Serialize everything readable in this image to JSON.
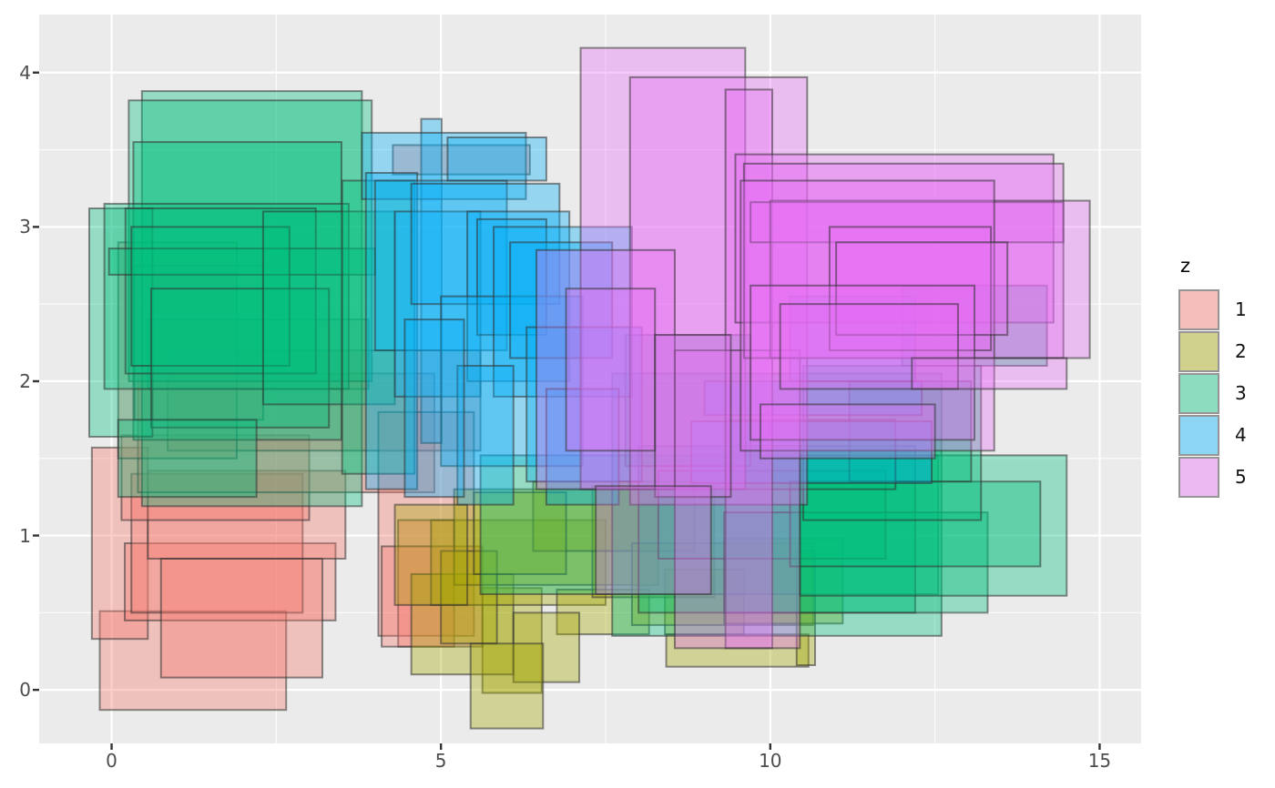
{
  "chart_data": {
    "type": "rect",
    "title": "",
    "xlabel": "",
    "ylabel": "",
    "x_tick_labels": [
      "0",
      "5",
      "10",
      "15"
    ],
    "x_tick_values": [
      0,
      5,
      10,
      15
    ],
    "x_minor_values": [
      2.5,
      7.5,
      12.5
    ],
    "y_tick_labels": [
      "0",
      "1",
      "2",
      "3",
      "4"
    ],
    "y_tick_values": [
      0,
      1,
      2,
      3,
      4
    ],
    "y_minor_values": [
      0.5,
      1.5,
      2.5,
      3.5
    ],
    "xlim": [
      -1.1,
      15.63
    ],
    "ylim": [
      -0.347,
      4.376
    ],
    "grid": true,
    "panel_bg": "#EBEBEB",
    "grid_color": "#FFFFFF",
    "axis_text_color": "#4d4d4d",
    "tick_mark_color": "#333333",
    "fill_alpha": 0.36,
    "rect_stroke": "rgba(50,50,50,0.55)",
    "rect_stroke_width": 2,
    "legend": {
      "title": "z",
      "position": "right",
      "entries": [
        {
          "label": "1",
          "color": "#F8766D"
        },
        {
          "label": "2",
          "color": "#A3A500"
        },
        {
          "label": "3",
          "color": "#00BF7D"
        },
        {
          "label": "4",
          "color": "#00B0F6"
        },
        {
          "label": "5",
          "color": "#E76BF3"
        }
      ]
    },
    "rect_format": [
      "z",
      "xmin",
      "xmax",
      "ymin",
      "ymax"
    ],
    "rects": [
      [
        1,
        -0.18,
        2.65,
        -0.13,
        0.51
      ],
      [
        1,
        -0.3,
        0.55,
        0.33,
        1.57
      ],
      [
        1,
        0.2,
        3.4,
        0.45,
        0.95
      ],
      [
        1,
        0.3,
        2.9,
        0.5,
        1.4
      ],
      [
        1,
        0.55,
        3.55,
        0.85,
        1.42
      ],
      [
        1,
        0.15,
        3.0,
        1.1,
        1.65
      ],
      [
        1,
        0.4,
        4.9,
        1.28,
        2.05
      ],
      [
        1,
        0.85,
        5.6,
        1.55,
        2.2
      ],
      [
        1,
        0.1,
        1.9,
        1.5,
        2.9
      ],
      [
        1,
        0.35,
        2.3,
        1.75,
        2.75
      ],
      [
        1,
        0.55,
        3.9,
        1.95,
        2.4
      ],
      [
        1,
        4.05,
        5.5,
        0.35,
        1.8
      ],
      [
        1,
        4.35,
        5.2,
        0.28,
        1.1
      ],
      [
        1,
        4.27,
        6.35,
        3.34,
        3.53
      ],
      [
        1,
        4.1,
        5.63,
        0.28,
        0.93
      ],
      [
        1,
        0.75,
        3.2,
        0.08,
        0.85
      ],
      [
        2,
        5.63,
        6.53,
        -0.02,
        0.66
      ],
      [
        2,
        4.55,
        6.1,
        0.1,
        0.75
      ],
      [
        2,
        4.85,
        7.5,
        0.55,
        1.1
      ],
      [
        2,
        5.2,
        8.3,
        0.68,
        1.3
      ],
      [
        2,
        6.76,
        8.16,
        0.36,
        0.65
      ],
      [
        2,
        8.42,
        10.58,
        0.15,
        0.36
      ],
      [
        2,
        8.4,
        9.6,
        0.36,
        0.78
      ],
      [
        2,
        7.3,
        9.15,
        0.6,
        1.32
      ],
      [
        2,
        6.1,
        7.1,
        0.05,
        0.5
      ],
      [
        2,
        5.0,
        5.85,
        0.3,
        0.9
      ],
      [
        2,
        6.4,
        8.85,
        0.9,
        1.35
      ],
      [
        2,
        7.9,
        10.65,
        0.42,
        0.95
      ],
      [
        2,
        9.3,
        11.1,
        0.43,
        0.98
      ],
      [
        2,
        10.4,
        10.68,
        0.16,
        0.9
      ],
      [
        2,
        4.3,
        5.4,
        0.55,
        1.2
      ],
      [
        2,
        5.45,
        6.55,
        -0.25,
        0.3
      ],
      [
        2,
        5.5,
        6.9,
        0.75,
        1.28
      ],
      [
        3,
        0.46,
        3.8,
        1.19,
        3.88
      ],
      [
        3,
        0.26,
        3.95,
        2.0,
        3.82
      ],
      [
        3,
        0.33,
        3.49,
        1.62,
        3.55
      ],
      [
        3,
        -0.34,
        0.62,
        1.64,
        3.12
      ],
      [
        3,
        -0.11,
        3.6,
        1.95,
        3.15
      ],
      [
        3,
        0.21,
        3.1,
        2.05,
        3.12
      ],
      [
        3,
        -0.04,
        4.0,
        2.69,
        2.86
      ],
      [
        3,
        0.3,
        2.7,
        2.1,
        3.0
      ],
      [
        3,
        0.6,
        3.3,
        1.7,
        2.6
      ],
      [
        3,
        2.3,
        4.3,
        1.85,
        3.1
      ],
      [
        3,
        3.5,
        4.6,
        1.4,
        3.3
      ],
      [
        3,
        0.1,
        2.2,
        1.25,
        1.75
      ],
      [
        3,
        5.6,
        12.55,
        0.62,
        1.52
      ],
      [
        3,
        7.6,
        12.6,
        0.35,
        2.05
      ],
      [
        3,
        8.0,
        12.2,
        0.5,
        1.58
      ],
      [
        3,
        8.3,
        11.75,
        0.85,
        1.42
      ],
      [
        3,
        9.3,
        13.3,
        0.5,
        1.15
      ],
      [
        3,
        10.45,
        14.5,
        0.61,
        1.52
      ],
      [
        3,
        10.3,
        14.1,
        0.8,
        1.35
      ],
      [
        3,
        10.5,
        13.2,
        1.1,
        2.1
      ],
      [
        3,
        11.2,
        13.05,
        1.35,
        2.0
      ],
      [
        3,
        12.0,
        14.2,
        2.1,
        2.62
      ],
      [
        3,
        9.35,
        11.9,
        1.3,
        1.75
      ],
      [
        3,
        7.8,
        9.7,
        1.45,
        2.3
      ],
      [
        4,
        4.7,
        5.01,
        1.6,
        3.7
      ],
      [
        4,
        3.8,
        6.29,
        3.18,
        3.61
      ],
      [
        4,
        3.86,
        4.64,
        1.3,
        3.35
      ],
      [
        4,
        4.0,
        6.0,
        2.2,
        3.3
      ],
      [
        4,
        4.3,
        5.6,
        1.9,
        3.1
      ],
      [
        4,
        4.55,
        6.8,
        2.5,
        3.28
      ],
      [
        4,
        5.4,
        6.95,
        2.0,
        3.1
      ],
      [
        4,
        5.55,
        6.6,
        2.3,
        3.05
      ],
      [
        4,
        5.0,
        7.15,
        1.45,
        2.55
      ],
      [
        4,
        5.8,
        7.9,
        1.9,
        3.0
      ],
      [
        4,
        6.05,
        7.6,
        2.15,
        2.9
      ],
      [
        4,
        5.25,
        6.1,
        1.2,
        2.1
      ],
      [
        4,
        6.3,
        8.05,
        1.35,
        2.35
      ],
      [
        4,
        4.45,
        5.35,
        1.25,
        2.4
      ],
      [
        4,
        6.6,
        7.7,
        1.2,
        1.95
      ],
      [
        4,
        8.8,
        12.45,
        1.34,
        1.74
      ],
      [
        4,
        9.0,
        12.3,
        1.78,
        2.0
      ],
      [
        4,
        5.1,
        6.6,
        3.3,
        3.58
      ],
      [
        4,
        10.3,
        12.2,
        2.0,
        2.55
      ],
      [
        5,
        7.12,
        9.62,
        1.3,
        4.16
      ],
      [
        5,
        7.87,
        10.56,
        1.2,
        3.97
      ],
      [
        5,
        9.32,
        10.03,
        0.27,
        3.89
      ],
      [
        5,
        8.55,
        10.45,
        0.27,
        2.2
      ],
      [
        5,
        9.47,
        14.3,
        2.38,
        3.47
      ],
      [
        5,
        9.6,
        14.45,
        2.15,
        3.41
      ],
      [
        5,
        9.7,
        14.45,
        2.9,
        3.16
      ],
      [
        5,
        10.0,
        14.85,
        2.15,
        3.17
      ],
      [
        5,
        9.55,
        13.4,
        1.55,
        3.3
      ],
      [
        5,
        10.9,
        13.35,
        2.2,
        3.0
      ],
      [
        5,
        11.0,
        13.6,
        2.3,
        2.9
      ],
      [
        5,
        9.7,
        13.1,
        1.62,
        2.62
      ],
      [
        5,
        10.15,
        12.85,
        1.95,
        2.5
      ],
      [
        5,
        6.45,
        8.55,
        1.3,
        2.85
      ],
      [
        5,
        6.9,
        8.25,
        1.55,
        2.6
      ],
      [
        5,
        8.25,
        9.4,
        1.25,
        2.3
      ],
      [
        5,
        7.35,
        9.1,
        0.62,
        1.32
      ],
      [
        5,
        9.85,
        12.5,
        1.5,
        1.85
      ],
      [
        5,
        12.15,
        14.5,
        1.95,
        2.15
      ]
    ]
  },
  "legend": {
    "title": "z",
    "labels": [
      "1",
      "2",
      "3",
      "4",
      "5"
    ]
  }
}
